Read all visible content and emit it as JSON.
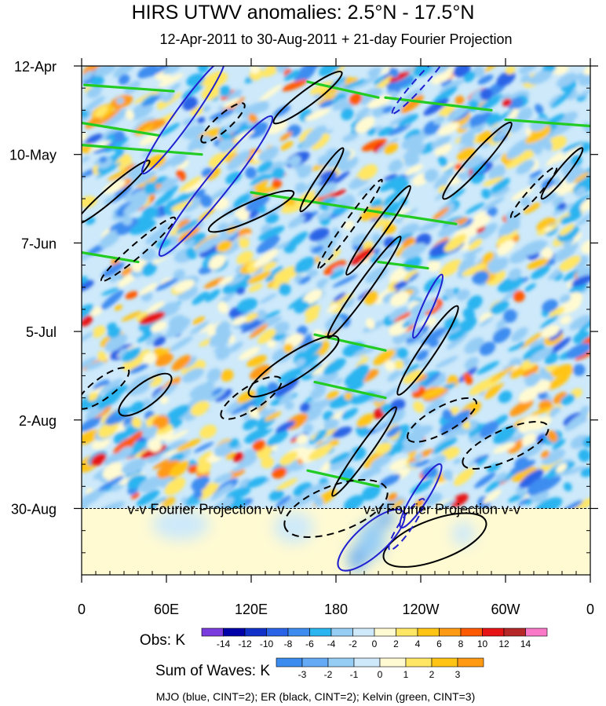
{
  "chart_data": {
    "type": "heatmap",
    "title": "HIRS UTWV anomalies: 2.5°N - 17.5°N",
    "subtitle": "12-Apr-2011 to 30-Aug-2011 + 21-day Fourier Projection",
    "xlabel": "",
    "ylabel": "",
    "x_ticks": [
      "0",
      "60E",
      "120E",
      "180",
      "120W",
      "60W",
      "0"
    ],
    "x_tick_values": [
      0,
      60,
      120,
      180,
      240,
      300,
      360
    ],
    "y_ticks": [
      "12-Apr",
      "10-May",
      "7-Jun",
      "5-Jul",
      "2-Aug",
      "30-Aug"
    ],
    "y_tick_days": [
      0,
      28,
      56,
      84,
      112,
      140
    ],
    "xlim": [
      0,
      360
    ],
    "ylim_days": [
      0,
      161
    ],
    "projection_start_day": 140,
    "projection_label": "v-v Fourier Projection v-v",
    "obs_colorbar": {
      "label": "Obs: K",
      "levels": [
        "-14",
        "-12",
        "-10",
        "-8",
        "-6",
        "-4",
        "-2",
        "0",
        "2",
        "4",
        "6",
        "8",
        "10",
        "12",
        "14"
      ],
      "colors": [
        "#7a3cdc",
        "#0000a8",
        "#1032c8",
        "#2a64e6",
        "#3c8cf0",
        "#2ab4f0",
        "#96cdf5",
        "#cde9fa",
        "#fffad2",
        "#ffe664",
        "#ffc414",
        "#ff9a14",
        "#ff5a00",
        "#e61414",
        "#b42828",
        "#fa78c8"
      ]
    },
    "waves_colorbar": {
      "label": "Sum of Waves: K",
      "levels": [
        "-3",
        "-2",
        "-1",
        "0",
        "1",
        "2",
        "3"
      ],
      "colors": [
        "#3c8cf0",
        "#64aaf5",
        "#96cdf5",
        "#cde9fa",
        "#fffad2",
        "#ffe664",
        "#ffc414",
        "#ff9a14"
      ]
    },
    "series": [
      {
        "name": "MJO",
        "color": "#2020d0",
        "contour_interval": 2,
        "features": [
          {
            "lon": 72,
            "day": 16,
            "half_length_days": 18,
            "half_width_deg": 7,
            "slope_deg_per_day": -1.6,
            "sign": "positive"
          },
          {
            "lon": 95,
            "day": 38,
            "half_length_days": 22,
            "half_width_deg": 9,
            "slope_deg_per_day": -1.8,
            "sign": "positive"
          },
          {
            "lon": 240,
            "day": 136,
            "half_length_days": 10,
            "half_width_deg": 6,
            "slope_deg_per_day": -1.4,
            "sign": "positive"
          },
          {
            "lon": 245,
            "day": 76,
            "half_length_days": 10,
            "half_width_deg": 4,
            "slope_deg_per_day": -1.0,
            "sign": "positive"
          },
          {
            "lon": 205,
            "day": 150,
            "half_length_days": 9,
            "half_width_deg": 12,
            "slope_deg_per_day": -2.5,
            "sign": "positive"
          },
          {
            "lon": 230,
            "day": 145,
            "half_length_days": 8,
            "half_width_deg": 5,
            "slope_deg_per_day": -1.5,
            "sign": "negative"
          },
          {
            "lon": 240,
            "day": 5,
            "half_length_days": 10,
            "half_width_deg": 4,
            "slope_deg_per_day": -2.0,
            "sign": "negative"
          }
        ]
      },
      {
        "name": "ER",
        "color": "#000000",
        "contour_interval": 2,
        "features": [
          {
            "lon": 22,
            "day": 40,
            "half_length_days": 10,
            "half_width_deg": 5,
            "slope_deg_per_day": -2.6,
            "sign": "positive"
          },
          {
            "lon": 40,
            "day": 58,
            "half_length_days": 10,
            "half_width_deg": 5,
            "slope_deg_per_day": -2.6,
            "sign": "negative"
          },
          {
            "lon": 120,
            "day": 46,
            "half_length_days": 6,
            "half_width_deg": 7,
            "slope_deg_per_day": -5.0,
            "sign": "positive"
          },
          {
            "lon": 170,
            "day": 36,
            "half_length_days": 10,
            "half_width_deg": 4,
            "slope_deg_per_day": -1.5,
            "sign": "positive"
          },
          {
            "lon": 210,
            "day": 52,
            "half_length_days": 14,
            "half_width_deg": 5,
            "slope_deg_per_day": -1.6,
            "sign": "positive"
          },
          {
            "lon": 200,
            "day": 70,
            "half_length_days": 16,
            "half_width_deg": 5,
            "slope_deg_per_day": -1.6,
            "sign": "positive"
          },
          {
            "lon": 245,
            "day": 90,
            "half_length_days": 14,
            "half_width_deg": 6,
            "slope_deg_per_day": -1.5,
            "sign": "positive"
          },
          {
            "lon": 280,
            "day": 30,
            "half_length_days": 12,
            "half_width_deg": 6,
            "slope_deg_per_day": -2.0,
            "sign": "positive"
          },
          {
            "lon": 340,
            "day": 34,
            "half_length_days": 8,
            "half_width_deg": 4,
            "slope_deg_per_day": -1.8,
            "sign": "positive"
          },
          {
            "lon": 45,
            "day": 104,
            "half_length_days": 6,
            "half_width_deg": 9,
            "slope_deg_per_day": -3.0,
            "sign": "positive"
          },
          {
            "lon": 150,
            "day": 95,
            "half_length_days": 9,
            "half_width_deg": 10,
            "slope_deg_per_day": -3.5,
            "sign": "positive"
          },
          {
            "lon": 200,
            "day": 122,
            "half_length_days": 14,
            "half_width_deg": 5,
            "slope_deg_per_day": -1.6,
            "sign": "positive"
          },
          {
            "lon": 250,
            "day": 150,
            "half_length_days": 6,
            "half_width_deg": 16,
            "slope_deg_per_day": -6.0,
            "sign": "positive"
          },
          {
            "lon": 180,
            "day": 140,
            "half_length_days": 6,
            "half_width_deg": 18,
            "slope_deg_per_day": -6.0,
            "sign": "negative"
          },
          {
            "lon": 15,
            "day": 102,
            "half_length_days": 6,
            "half_width_deg": 8,
            "slope_deg_per_day": -3.0,
            "sign": "negative"
          },
          {
            "lon": 120,
            "day": 105,
            "half_length_days": 6,
            "half_width_deg": 9,
            "slope_deg_per_day": -3.5,
            "sign": "negative"
          },
          {
            "lon": 190,
            "day": 50,
            "half_length_days": 14,
            "half_width_deg": 4,
            "slope_deg_per_day": -1.6,
            "sign": "negative"
          },
          {
            "lon": 320,
            "day": 40,
            "half_length_days": 8,
            "half_width_deg": 4,
            "slope_deg_per_day": -2.0,
            "sign": "negative"
          },
          {
            "lon": 300,
            "day": 120,
            "half_length_days": 6,
            "half_width_deg": 12,
            "slope_deg_per_day": -5.0,
            "sign": "negative"
          },
          {
            "lon": 255,
            "day": 112,
            "half_length_days": 6,
            "half_width_deg": 10,
            "slope_deg_per_day": -4.0,
            "sign": "negative"
          },
          {
            "lon": 100,
            "day": 18,
            "half_length_days": 6,
            "half_width_deg": 6,
            "slope_deg_per_day": -2.5,
            "sign": "negative"
          },
          {
            "lon": 160,
            "day": 10,
            "half_length_days": 8,
            "half_width_deg": 6,
            "slope_deg_per_day": -3.0,
            "sign": "positive"
          }
        ]
      },
      {
        "name": "Kelvin",
        "color": "#22cc22",
        "contour_interval": 3,
        "features": [
          {
            "lon0": 120,
            "lon1": 265,
            "day0": 40,
            "day1": 50
          },
          {
            "lon0": 0,
            "lon1": 40,
            "day0": 59,
            "day1": 62
          },
          {
            "lon0": 0,
            "lon1": 55,
            "day0": 18,
            "day1": 22
          },
          {
            "lon0": 0,
            "lon1": 85,
            "day0": 25,
            "day1": 28
          },
          {
            "lon0": 2,
            "lon1": 65,
            "day0": 6,
            "day1": 8
          },
          {
            "lon0": 160,
            "lon1": 210,
            "day0": 5,
            "day1": 10
          },
          {
            "lon0": 215,
            "lon1": 290,
            "day0": 10,
            "day1": 14
          },
          {
            "lon0": 300,
            "lon1": 360,
            "day0": 17,
            "day1": 19
          },
          {
            "lon0": 210,
            "lon1": 245,
            "day0": 62,
            "day1": 64
          },
          {
            "lon0": 165,
            "lon1": 215,
            "day0": 85,
            "day1": 90
          },
          {
            "lon0": 165,
            "lon1": 215,
            "day0": 100,
            "day1": 105
          },
          {
            "lon0": 160,
            "lon1": 210,
            "day0": 128,
            "day1": 133
          }
        ]
      }
    ]
  },
  "legend_note": "MJO (blue, CINT=2); ER (black, CINT=2); Kelvin (green, CINT=3)"
}
